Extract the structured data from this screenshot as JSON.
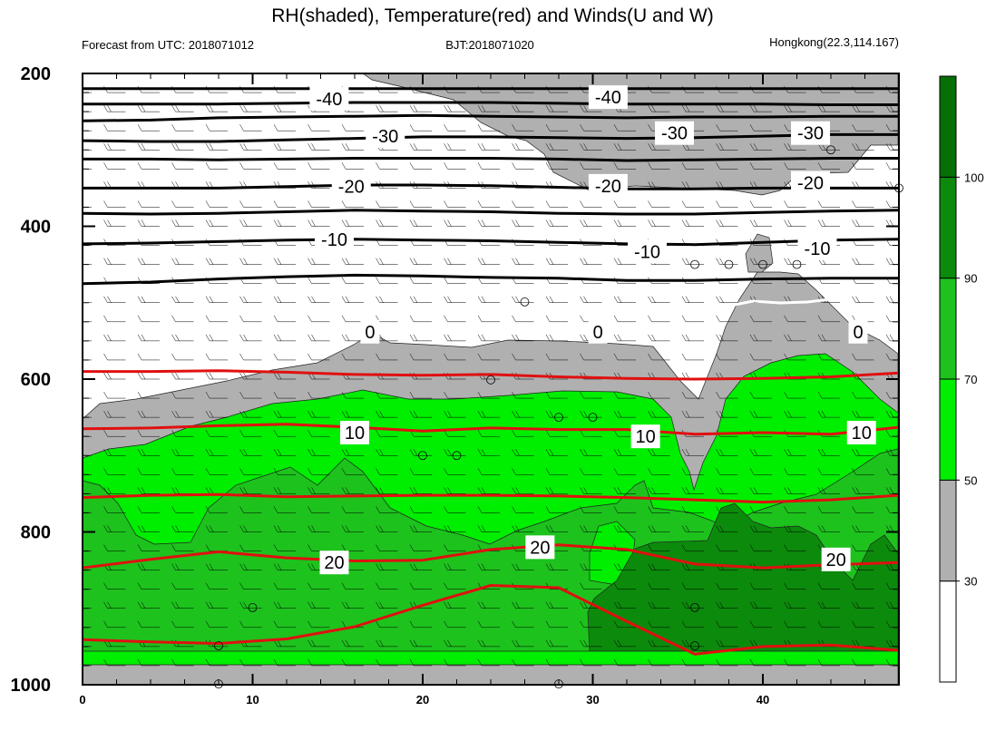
{
  "title": "RH(shaded), Temperature(red) and Winds(U and W)",
  "subtitle_left": "Forecast from UTC: 2018071012",
  "subtitle_center": "BJT:2018071020",
  "subtitle_right": "Hongkong(22.3,114.167)",
  "chart_data": {
    "type": "contour",
    "x_range": [
      0,
      48
    ],
    "y_range": [
      1000,
      200
    ],
    "y_axis": "pressure (inverted)",
    "x_ticks": [
      "0",
      "10",
      "20",
      "30",
      "40"
    ],
    "y_ticks": [
      "200",
      "400",
      "600",
      "800",
      "1000"
    ],
    "colorbar": {
      "labels": [
        "30",
        "50",
        "70",
        "90",
        "100"
      ],
      "levels": [
        {
          "lo": 0,
          "hi": 30,
          "color": "#ffffff"
        },
        {
          "lo": 30,
          "hi": 50,
          "color": "#b0b0b0"
        },
        {
          "lo": 50,
          "hi": 70,
          "color": "#00ee00"
        },
        {
          "lo": 70,
          "hi": 90,
          "color": "#1dc21d"
        },
        {
          "lo": 90,
          "hi": 100,
          "color": "#0c8a0c"
        },
        {
          "lo": 100,
          "hi": 110,
          "color": "#067006"
        }
      ]
    },
    "black_isotherms": [
      {
        "y": [
          220,
          220,
          220,
          220,
          220,
          220,
          220,
          220,
          220,
          220,
          220,
          220,
          220
        ]
      },
      {
        "y": [
          240,
          240,
          240,
          239,
          238,
          238,
          238,
          239,
          240,
          240,
          240,
          241,
          241
        ]
      },
      {
        "y": [
          262,
          261,
          258,
          257,
          256,
          255,
          256,
          257,
          258,
          257,
          257,
          256,
          256
        ]
      },
      {
        "y": [
          288,
          289,
          289,
          287,
          285,
          283,
          283,
          284,
          285,
          284,
          282,
          280,
          280
        ]
      },
      {
        "y": [
          312,
          312,
          313,
          312,
          311,
          311,
          311,
          312,
          314,
          313,
          312,
          311,
          311
        ]
      },
      {
        "y": [
          350,
          350,
          350,
          348,
          346,
          346,
          347,
          349,
          351,
          351,
          350,
          350,
          350
        ]
      },
      {
        "y": [
          383,
          384,
          383,
          381,
          379,
          380,
          381,
          383,
          384,
          384,
          382,
          380,
          379
        ]
      },
      {
        "y": [
          423,
          422,
          420,
          418,
          417,
          418,
          419,
          421,
          423,
          424,
          421,
          418,
          417
        ]
      },
      {
        "y": [
          475,
          473,
          469,
          466,
          464,
          465,
          467,
          468,
          471,
          471,
          469,
          468,
          468
        ]
      }
    ],
    "red_isotherms": [
      {
        "y": [
          590,
          590,
          589,
          591,
          594,
          595,
          594,
          597,
          599,
          600,
          599,
          597,
          592
        ]
      },
      {
        "y": [
          665,
          664,
          661,
          659,
          663,
          668,
          664,
          666,
          666,
          672,
          670,
          672,
          663
        ]
      },
      {
        "y": [
          755,
          752,
          751,
          754,
          753,
          752,
          752,
          753,
          755,
          758,
          761,
          758,
          752
        ]
      },
      {
        "y": [
          847,
          836,
          826,
          834,
          838,
          837,
          823,
          817,
          823,
          842,
          847,
          843,
          840
        ]
      },
      {
        "y": [
          941,
          944,
          946,
          940,
          924,
          896,
          870,
          873,
          917,
          960,
          950,
          948,
          955
        ]
      }
    ],
    "contour_labels": [
      {
        "text": "-40",
        "x": 14.5,
        "y": 233
      },
      {
        "text": "-40",
        "x": 30.9,
        "y": 231
      },
      {
        "text": "-30",
        "x": 17.8,
        "y": 282
      },
      {
        "text": "-30",
        "x": 34.8,
        "y": 278
      },
      {
        "text": "-30",
        "x": 42.8,
        "y": 278
      },
      {
        "text": "-20",
        "x": 15.8,
        "y": 348
      },
      {
        "text": "-20",
        "x": 30.9,
        "y": 347
      },
      {
        "text": "-20",
        "x": 42.8,
        "y": 343
      },
      {
        "text": "-10",
        "x": 14.8,
        "y": 417
      },
      {
        "text": "-10",
        "x": 33.2,
        "y": 433
      },
      {
        "text": "-10",
        "x": 43.2,
        "y": 429
      },
      {
        "text": "0",
        "x": 16.9,
        "y": 538
      },
      {
        "text": "0",
        "x": 30.3,
        "y": 538
      },
      {
        "text": "0",
        "x": 45.6,
        "y": 538
      },
      {
        "text": "10",
        "x": 16.0,
        "y": 670
      },
      {
        "text": "10",
        "x": 33.1,
        "y": 675
      },
      {
        "text": "10",
        "x": 45.8,
        "y": 670
      },
      {
        "text": "20",
        "x": 14.8,
        "y": 840
      },
      {
        "text": "20",
        "x": 26.9,
        "y": 820
      },
      {
        "text": "20",
        "x": 44.3,
        "y": 836
      }
    ],
    "calm_circles": [
      {
        "x": 24.0,
        "y": 601
      },
      {
        "x": 26.0,
        "y": 499
      },
      {
        "x": 28.0,
        "y": 650
      },
      {
        "x": 30.0,
        "y": 650
      },
      {
        "x": 20.0,
        "y": 700
      },
      {
        "x": 22.0,
        "y": 700
      },
      {
        "x": 10.0,
        "y": 899
      },
      {
        "x": 8.0,
        "y": 949
      },
      {
        "x": 8.0,
        "y": 999
      },
      {
        "x": 28.0,
        "y": 999
      },
      {
        "x": 36.0,
        "y": 899
      },
      {
        "x": 36.0,
        "y": 949
      },
      {
        "x": 36.0,
        "y": 450
      },
      {
        "x": 38.0,
        "y": 450
      },
      {
        "x": 40.0,
        "y": 450
      },
      {
        "x": 42.0,
        "y": 450
      },
      {
        "x": 44.0,
        "y": 300
      },
      {
        "x": 48.0,
        "y": 350
      }
    ]
  }
}
